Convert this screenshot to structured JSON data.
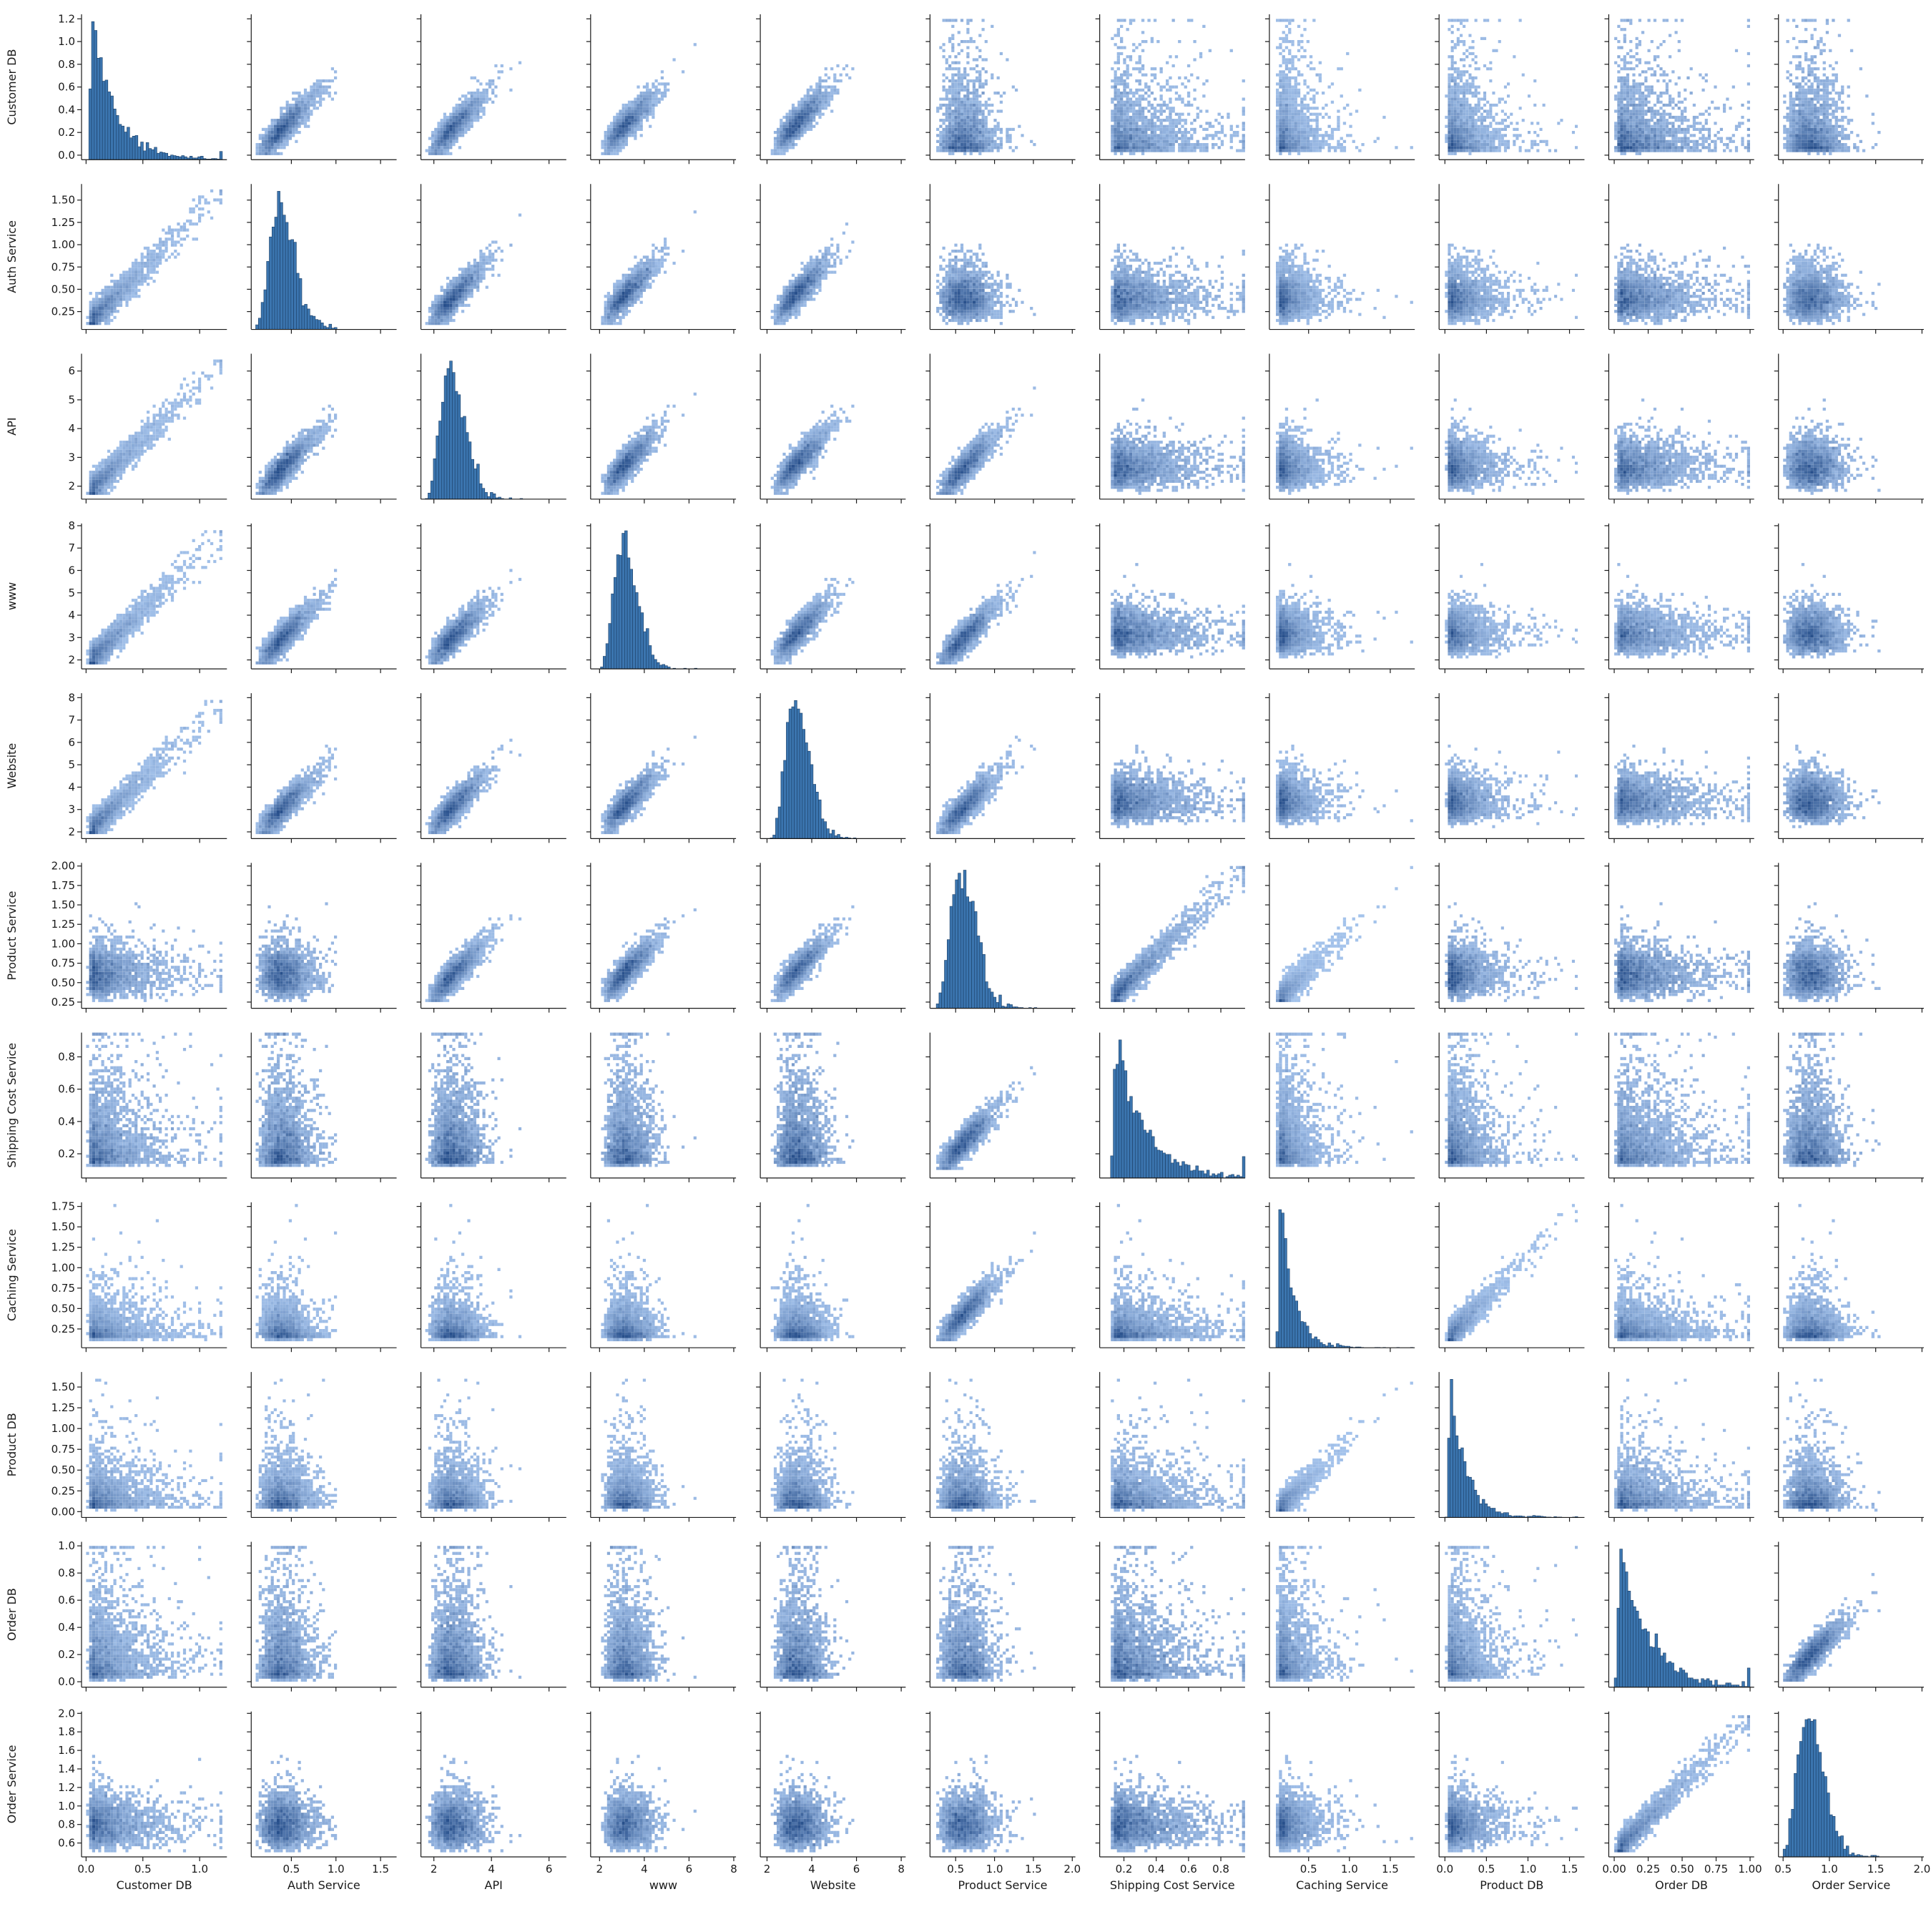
{
  "chart_data": {
    "type": "pairplot",
    "diagonal_type": "histogram",
    "off_diagonal_type": "2d-histogram",
    "color": "#1f77b4",
    "variables": [
      "Customer DB",
      "Auth Service",
      "API",
      "www",
      "Website",
      "Product Service",
      "Shipping Cost Service",
      "Caching Service",
      "Product DB",
      "Order DB",
      "Order Service"
    ],
    "axes": {
      "Customer DB": {
        "range": [
          -0.04,
          1.24
        ],
        "ticks": [
          0.0,
          0.2,
          0.4,
          0.6,
          0.8,
          1.0,
          1.2
        ],
        "xticks": [
          0.0,
          0.5,
          1.0
        ],
        "data_min": 0.0,
        "data_max": 1.2,
        "dist": {
          "shape": "exp",
          "mode": 0.02,
          "scale": 0.2
        }
      },
      "Auth Service": {
        "range": [
          0.05,
          1.68
        ],
        "ticks": [
          0.25,
          0.5,
          0.75,
          1.0,
          1.25,
          1.5
        ],
        "xticks": [
          0.5,
          1.0,
          1.5
        ],
        "data_min": 0.1,
        "data_max": 1.62,
        "dist": {
          "shape": "skew",
          "mode": 0.38,
          "scale": 0.3
        }
      },
      "API": {
        "range": [
          1.55,
          6.6
        ],
        "ticks": [
          2,
          3,
          4,
          5,
          6
        ],
        "xticks": [
          2,
          4,
          6
        ],
        "data_min": 1.7,
        "data_max": 6.4,
        "dist": {
          "shape": "skew",
          "mode": 2.6,
          "scale": 0.9
        }
      },
      "www": {
        "range": [
          1.6,
          8.1
        ],
        "ticks": [
          2,
          3,
          4,
          5,
          6,
          7,
          8
        ],
        "xticks": [
          2,
          4,
          6,
          8
        ],
        "data_min": 1.8,
        "data_max": 7.8,
        "dist": {
          "shape": "skew",
          "mode": 3.1,
          "scale": 1.1
        }
      },
      "Website": {
        "range": [
          1.7,
          8.2
        ],
        "ticks": [
          2,
          3,
          4,
          5,
          6,
          7,
          8
        ],
        "xticks": [
          2,
          4,
          6,
          8
        ],
        "data_min": 1.9,
        "data_max": 7.9,
        "dist": {
          "shape": "skew",
          "mode": 3.3,
          "scale": 1.1
        }
      },
      "Product Service": {
        "range": [
          0.17,
          2.04
        ],
        "ticks": [
          0.25,
          0.5,
          0.75,
          1.0,
          1.25,
          1.5,
          1.75,
          2.0
        ],
        "xticks": [
          0.5,
          1.0,
          1.5,
          2.0
        ],
        "data_min": 0.25,
        "data_max": 2.0,
        "dist": {
          "shape": "skew",
          "mode": 0.58,
          "scale": 0.35
        }
      },
      "Shipping Cost Service": {
        "range": [
          0.05,
          0.95
        ],
        "ticks": [
          0.2,
          0.4,
          0.6,
          0.8
        ],
        "xticks": [
          0.2,
          0.4,
          0.6,
          0.8
        ],
        "data_min": 0.1,
        "data_max": 0.95,
        "dist": {
          "shape": "exp",
          "mode": 0.12,
          "scale": 0.17
        }
      },
      "Caching Service": {
        "range": [
          0.02,
          1.8
        ],
        "ticks": [
          0.25,
          0.5,
          0.75,
          1.0,
          1.25,
          1.5,
          1.75
        ],
        "xticks": [
          0.5,
          1.0,
          1.5
        ],
        "data_min": 0.1,
        "data_max": 1.78,
        "dist": {
          "shape": "exp",
          "mode": 0.12,
          "scale": 0.15
        }
      },
      "Product DB": {
        "range": [
          -0.07,
          1.68
        ],
        "ticks": [
          0.0,
          0.25,
          0.5,
          0.75,
          1.0,
          1.25,
          1.5
        ],
        "xticks": [
          0.0,
          0.5,
          1.0,
          1.5
        ],
        "data_min": 0.0,
        "data_max": 1.6,
        "dist": {
          "shape": "exp",
          "mode": 0.03,
          "scale": 0.18
        }
      },
      "Order DB": {
        "range": [
          -0.04,
          1.03
        ],
        "ticks": [
          0.0,
          0.2,
          0.4,
          0.6,
          0.8,
          1.0
        ],
        "xticks": [
          0.0,
          0.25,
          0.5,
          0.75,
          1.0
        ],
        "data_min": 0.0,
        "data_max": 1.0,
        "dist": {
          "shape": "exp",
          "mode": 0.01,
          "scale": 0.2
        }
      },
      "Order Service": {
        "range": [
          0.45,
          2.02
        ],
        "ticks": [
          0.6,
          0.8,
          1.0,
          1.2,
          1.4,
          1.6,
          1.8,
          2.0
        ],
        "xticks": [
          0.5,
          1.0,
          1.5,
          2.0
        ],
        "data_min": 0.5,
        "data_max": 1.98,
        "dist": {
          "shape": "skew",
          "mode": 0.78,
          "scale": 0.3
        }
      }
    },
    "xtick_labels": {
      "Customer DB": [
        "0.0",
        "0.5",
        "1.0"
      ],
      "Auth Service": [
        "0.5",
        "1.0",
        "1.5"
      ],
      "API": [
        "2",
        "4",
        "6"
      ],
      "www": [
        "2",
        "4",
        "6",
        "8"
      ],
      "Website": [
        "2",
        "4",
        "6",
        "8"
      ],
      "Product Service": [
        "0.5",
        "1.0",
        "1.5",
        "2.0"
      ],
      "Shipping Cost Service": [
        "0.2",
        "0.4",
        "0.6",
        "0.8"
      ],
      "Caching Service": [
        "0.5",
        "1.0",
        "1.5"
      ],
      "Product DB": [
        "0.0",
        "0.5",
        "1.0",
        "1.5"
      ],
      "Order DB": [
        "0.00",
        "0.25",
        "0.50",
        "0.75",
        "1.00"
      ],
      "Order Service": [
        "0.5",
        "1.0",
        "1.5",
        "2.0"
      ]
    },
    "ytick_labels": {
      "Customer DB": [
        "0.0",
        "0.2",
        "0.4",
        "0.6",
        "0.8",
        "1.0",
        "1.2"
      ],
      "Auth Service": [
        "0.25",
        "0.50",
        "0.75",
        "1.00",
        "1.25",
        "1.50"
      ],
      "API": [
        "2",
        "3",
        "4",
        "5",
        "6"
      ],
      "www": [
        "2",
        "3",
        "4",
        "5",
        "6",
        "7",
        "8"
      ],
      "Website": [
        "2",
        "3",
        "4",
        "5",
        "6",
        "7",
        "8"
      ],
      "Product Service": [
        "0.25",
        "0.50",
        "0.75",
        "1.00",
        "1.25",
        "1.50",
        "1.75",
        "2.00"
      ],
      "Shipping Cost Service": [
        "0.2",
        "0.4",
        "0.6",
        "0.8"
      ],
      "Caching Service": [
        "0.25",
        "0.50",
        "0.75",
        "1.00",
        "1.25",
        "1.50",
        "1.75"
      ],
      "Product DB": [
        "0.00",
        "0.25",
        "0.50",
        "0.75",
        "1.00",
        "1.25",
        "1.50"
      ],
      "Order DB": [
        "0.0",
        "0.2",
        "0.4",
        "0.6",
        "0.8",
        "1.0"
      ],
      "Order Service": [
        "0.6",
        "0.8",
        "1.0",
        "1.2",
        "1.4",
        "1.6",
        "1.8",
        "2.0"
      ]
    },
    "strong_correlations": [
      [
        "Customer DB",
        "Auth Service"
      ],
      [
        "Customer DB",
        "API"
      ],
      [
        "Customer DB",
        "www"
      ],
      [
        "Customer DB",
        "Website"
      ],
      [
        "Auth Service",
        "API"
      ],
      [
        "Auth Service",
        "www"
      ],
      [
        "Auth Service",
        "Website"
      ],
      [
        "API",
        "www"
      ],
      [
        "API",
        "Website"
      ],
      [
        "www",
        "Website"
      ],
      [
        "Product Service",
        "API"
      ],
      [
        "Product Service",
        "www"
      ],
      [
        "Product Service",
        "Website"
      ],
      [
        "Product Service",
        "Caching Service"
      ],
      [
        "Product Service",
        "Shipping Cost Service"
      ],
      [
        "Caching Service",
        "Product DB"
      ],
      [
        "Order DB",
        "Order Service"
      ]
    ]
  }
}
